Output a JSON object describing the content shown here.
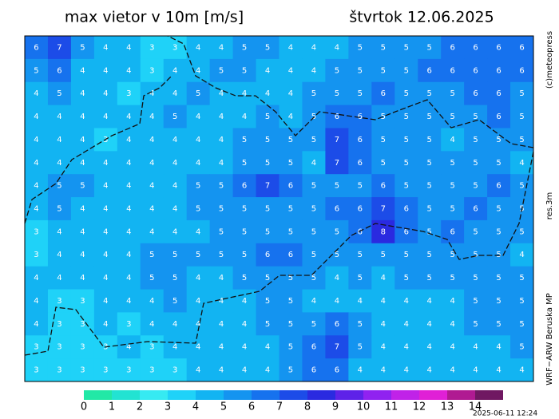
{
  "header": {
    "title": "max vietor v 10m [m/s]",
    "date": "štvrtok 12.06.2025"
  },
  "side_labels": {
    "copyright": "(c)meteopress",
    "resolution": "res.3m",
    "model": "WRF−ARW Beruska MP"
  },
  "timestamp": "2025-06-11 12:24",
  "colorbar": {
    "labels": [
      0,
      1,
      2,
      3,
      4,
      5,
      6,
      7,
      8,
      9,
      10,
      11,
      12,
      13,
      14
    ],
    "colors": [
      "#22e8a6",
      "#22e3d2",
      "#36eaf2",
      "#1fd2f8",
      "#12b4f2",
      "#1494f0",
      "#1672ee",
      "#1c4ce8",
      "#2a2ae0",
      "#5e22e8",
      "#9022f0",
      "#c022e8",
      "#e020d6",
      "#b01a92",
      "#701862"
    ]
  },
  "grid": [
    [
      6,
      7,
      5,
      4,
      4,
      3,
      3,
      4,
      4,
      5,
      5,
      4,
      4,
      4,
      5,
      5,
      5,
      5,
      6,
      6,
      6,
      6
    ],
    [
      5,
      6,
      4,
      4,
      4,
      3,
      4,
      4,
      5,
      5,
      4,
      4,
      4,
      5,
      5,
      5,
      5,
      6,
      6,
      6,
      6,
      6
    ],
    [
      4,
      5,
      4,
      4,
      3,
      4,
      4,
      5,
      4,
      4,
      4,
      4,
      5,
      5,
      5,
      6,
      5,
      5,
      5,
      6,
      6,
      5
    ],
    [
      4,
      4,
      4,
      4,
      4,
      4,
      5,
      4,
      4,
      4,
      5,
      4,
      5,
      6,
      6,
      5,
      5,
      5,
      5,
      5,
      6,
      5
    ],
    [
      4,
      4,
      4,
      3,
      4,
      4,
      4,
      4,
      4,
      5,
      5,
      5,
      5,
      7,
      6,
      5,
      5,
      5,
      4,
      5,
      5,
      5
    ],
    [
      4,
      4,
      4,
      4,
      4,
      4,
      4,
      4,
      4,
      5,
      5,
      5,
      4,
      7,
      6,
      5,
      5,
      5,
      5,
      5,
      5,
      4
    ],
    [
      4,
      5,
      5,
      4,
      4,
      4,
      4,
      5,
      5,
      6,
      7,
      6,
      5,
      5,
      5,
      6,
      5,
      5,
      5,
      5,
      6,
      5
    ],
    [
      4,
      5,
      4,
      4,
      4,
      4,
      4,
      5,
      5,
      5,
      5,
      5,
      5,
      6,
      6,
      7,
      6,
      5,
      5,
      6,
      5,
      5
    ],
    [
      3,
      4,
      4,
      4,
      4,
      4,
      4,
      4,
      5,
      5,
      5,
      5,
      5,
      5,
      6,
      8,
      6,
      5,
      6,
      5,
      5,
      5
    ],
    [
      3,
      4,
      4,
      4,
      4,
      5,
      5,
      5,
      5,
      5,
      6,
      6,
      5,
      5,
      5,
      5,
      5,
      5,
      5,
      5,
      5,
      4
    ],
    [
      4,
      4,
      4,
      4,
      4,
      5,
      5,
      4,
      4,
      5,
      5,
      5,
      5,
      4,
      5,
      4,
      5,
      5,
      5,
      5,
      5,
      5
    ],
    [
      4,
      3,
      3,
      4,
      4,
      4,
      5,
      4,
      4,
      4,
      5,
      5,
      4,
      4,
      4,
      4,
      4,
      4,
      4,
      5,
      5,
      5
    ],
    [
      4,
      3,
      3,
      4,
      3,
      4,
      4,
      4,
      4,
      4,
      5,
      5,
      5,
      6,
      5,
      4,
      4,
      4,
      4,
      5,
      5,
      5
    ],
    [
      3,
      3,
      3,
      3,
      4,
      3,
      4,
      4,
      4,
      4,
      4,
      5,
      6,
      7,
      5,
      4,
      4,
      4,
      4,
      4,
      4,
      5
    ],
    [
      3,
      3,
      3,
      3,
      3,
      3,
      3,
      4,
      4,
      4,
      4,
      5,
      6,
      6,
      4,
      4,
      4,
      4,
      4,
      4,
      4,
      4
    ]
  ]
}
